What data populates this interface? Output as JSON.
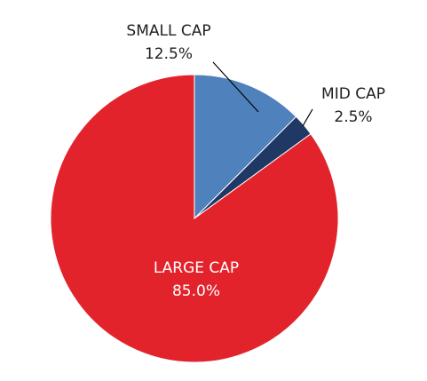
{
  "chart_data": {
    "type": "pie",
    "title": "",
    "start_angle_deg": 0,
    "direction": "clockwise",
    "slices": [
      {
        "label": "SMALL CAP",
        "value": 12.5,
        "value_label": "12.5%",
        "color": "#4f81bd"
      },
      {
        "label": "MID CAP",
        "value": 2.5,
        "value_label": "2.5%",
        "color": "#1f3864"
      },
      {
        "label": "LARGE CAP",
        "value": 85.0,
        "value_label": "85.0%",
        "color": "#e3232c"
      }
    ],
    "legend": "none"
  }
}
